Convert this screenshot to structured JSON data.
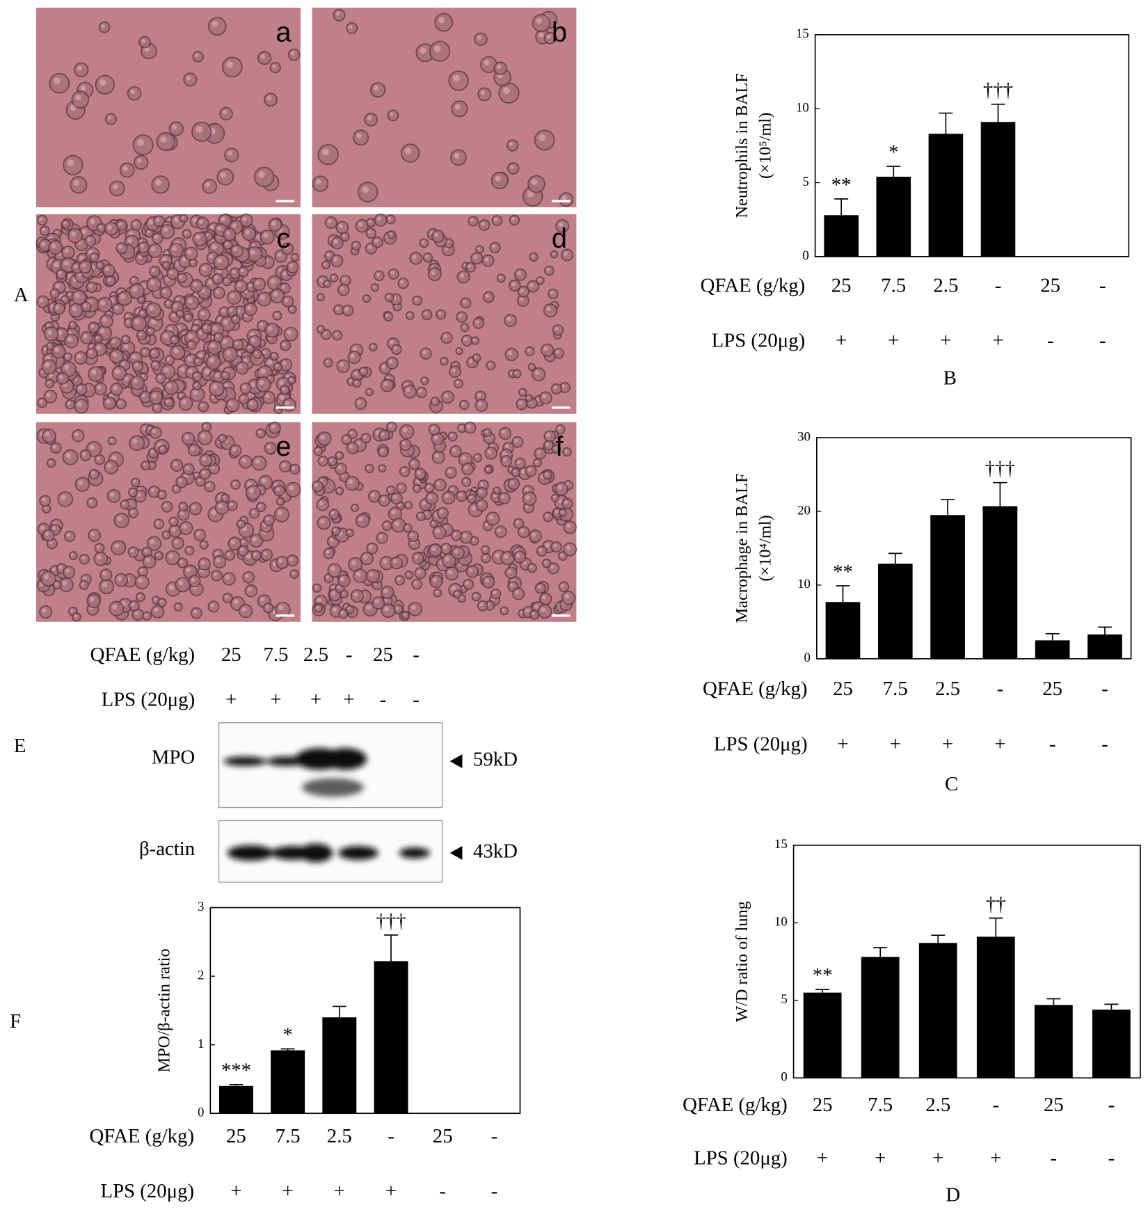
{
  "chart_data": [
    {
      "type": "bar",
      "panel": "B",
      "ylabel": [
        "Neutrophils in BALF",
        "(×10⁵/ml)"
      ],
      "rows": [
        {
          "label": "QFAE (g/kg)",
          "values": [
            "25",
            "7.5",
            "2.5",
            "-",
            "25",
            "-"
          ]
        },
        {
          "label": "LPS (20μg)",
          "values": [
            "+",
            "+",
            "+",
            "+",
            "-",
            "-"
          ]
        }
      ],
      "values": [
        2.8,
        5.4,
        8.3,
        9.1,
        null,
        null
      ],
      "errors": [
        1.1,
        0.7,
        1.4,
        1.2,
        null,
        null
      ],
      "annotations": [
        "**",
        "*",
        null,
        "†††",
        null,
        null
      ],
      "color": "#000000",
      "ylim": [
        0,
        15
      ],
      "yticks": [
        0,
        5,
        10,
        15
      ]
    },
    {
      "type": "bar",
      "panel": "C",
      "ylabel": [
        "Macrophage in BALF",
        "(×10⁴/ml)"
      ],
      "rows": [
        {
          "label": "QFAE (g/kg)",
          "values": [
            "25",
            "7.5",
            "2.5",
            "-",
            "25",
            "-"
          ]
        },
        {
          "label": "LPS (20μg)",
          "values": [
            "+",
            "+",
            "+",
            "+",
            "-",
            "-"
          ]
        }
      ],
      "values": [
        7.7,
        12.9,
        19.5,
        20.7,
        2.5,
        3.3
      ],
      "errors": [
        2.2,
        1.4,
        2.1,
        3.2,
        0.9,
        1.0
      ],
      "annotations": [
        "**",
        null,
        null,
        "†††",
        null,
        null
      ],
      "color": "#000000",
      "ylim": [
        0,
        30
      ],
      "yticks": [
        0,
        10,
        20,
        30
      ]
    },
    {
      "type": "bar",
      "panel": "D",
      "ylabel": [
        "W/D ratio  of lung"
      ],
      "rows": [
        {
          "label": "QFAE (g/kg)",
          "values": [
            "25",
            "7.5",
            "2.5",
            "-",
            "25",
            "-"
          ]
        },
        {
          "label": "LPS (20μg)",
          "values": [
            "+",
            "+",
            "+",
            "+",
            "-",
            "-"
          ]
        }
      ],
      "values": [
        5.5,
        7.8,
        8.7,
        9.1,
        4.7,
        4.4
      ],
      "errors": [
        0.2,
        0.6,
        0.5,
        1.2,
        0.4,
        0.35
      ],
      "annotations": [
        "**",
        null,
        null,
        "††",
        null,
        null
      ],
      "color": "#000000",
      "ylim": [
        0,
        15
      ],
      "yticks": [
        0,
        5,
        10,
        15
      ]
    },
    {
      "type": "bar",
      "panel": "F",
      "ylabel": [
        "MPO/β-actin ratio"
      ],
      "rows": [
        {
          "label": "QFAE (g/kg)",
          "values": [
            "25",
            "7.5",
            "2.5",
            "-",
            "25",
            "-"
          ]
        },
        {
          "label": "LPS (20μg)",
          "values": [
            "+",
            "+",
            "+",
            "+",
            "-",
            "-"
          ]
        }
      ],
      "values": [
        0.4,
        0.92,
        1.4,
        2.22,
        null,
        null
      ],
      "errors": [
        0.02,
        0.02,
        0.16,
        0.38,
        null,
        null
      ],
      "annotations": [
        "***",
        "*",
        null,
        "†††",
        null,
        null
      ],
      "color": "#000000",
      "ylim": [
        0,
        3
      ],
      "yticks": [
        0,
        1,
        2,
        3
      ]
    }
  ],
  "micrographs": {
    "panel": "A",
    "labels": [
      "a",
      "b",
      "c",
      "d",
      "e",
      "f"
    ]
  },
  "blot": {
    "panel": "E",
    "rows": [
      {
        "label": "QFAE (g/kg)",
        "values": [
          "25",
          "7.5",
          "2.5",
          "-",
          "25",
          "-"
        ]
      },
      {
        "label": "LPS (20μg)",
        "values": [
          "+",
          "+",
          "+",
          "+",
          "-",
          "-"
        ]
      }
    ],
    "bands": [
      {
        "name": "MPO",
        "size": "59kD"
      },
      {
        "name": "β-actin",
        "size": "43kD"
      }
    ]
  }
}
